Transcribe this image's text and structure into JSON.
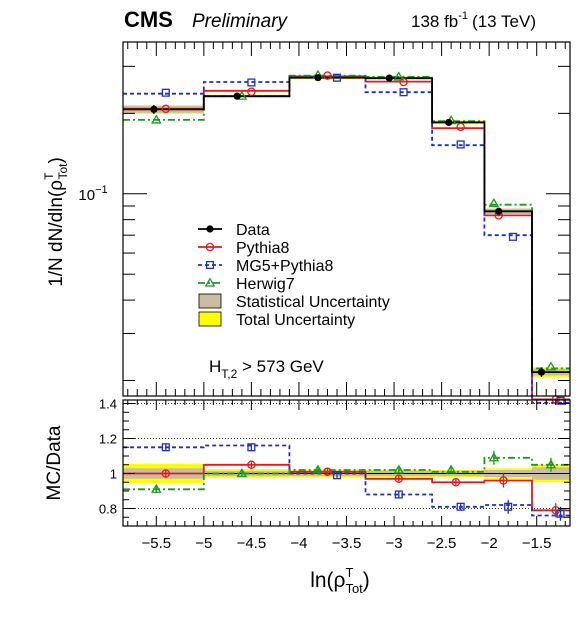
{
  "header": {
    "experiment": "CMS",
    "status": "Preliminary",
    "lumi": "138 fb",
    "lumi_exp": "-1",
    "energy": "(13 TeV)"
  },
  "annotation": {
    "base": "H",
    "sub": "T,2",
    "rest": " > 573 GeV"
  },
  "colors": {
    "data": "#000000",
    "pythia": "#e41a1c",
    "mg5": "#1f2fc8",
    "herwig": "#1a9a1a",
    "stat": "#c8bfa0",
    "total": "#ffff00"
  },
  "chart_data": [
    {
      "type": "line",
      "panel": "main",
      "ylabel": "1/N dN/dln(ρTot T)",
      "yscale": "log",
      "ylim": [
        0.0175,
        0.37
      ],
      "xlim": [
        -5.85,
        -1.15
      ],
      "yticks": [
        {
          "value": 0.1,
          "base": "10",
          "exp": "−1"
        }
      ],
      "bin_edges": [
        -5.85,
        -5.0,
        -4.1,
        -3.3,
        -2.6,
        -2.05,
        -1.55,
        -1.15
      ],
      "legend": {
        "position": "center-left",
        "entries": [
          {
            "key": "data",
            "label": "Data"
          },
          {
            "key": "pythia",
            "label": "Pythia8"
          },
          {
            "key": "mg5",
            "label": "MG5+Pythia8"
          },
          {
            "key": "herwig",
            "label": "Herwig7"
          },
          {
            "key": "stat",
            "label": "Statistical Uncertainty"
          },
          {
            "key": "total",
            "label": "Total Uncertainty"
          }
        ]
      },
      "series": [
        {
          "name": "Data",
          "key": "data",
          "values": [
            0.207,
            0.232,
            0.272,
            0.271,
            0.185,
            0.086,
            0.0215
          ],
          "stat_err": [
            0.006,
            0.002,
            0.002,
            0.003,
            0.002,
            0.002,
            0.0006
          ],
          "total_err": [
            0.008,
            0.003,
            0.004,
            0.004,
            0.003,
            0.002,
            0.0009
          ]
        },
        {
          "name": "Pythia8",
          "key": "pythia",
          "values": [
            0.208,
            0.243,
            0.275,
            0.263,
            0.176,
            0.083,
            0.017
          ],
          "marker_x": [
            -5.4,
            -4.5,
            -3.7,
            -2.9,
            -2.3,
            -1.9,
            -1.3
          ],
          "marker_y": [
            0.208,
            0.241,
            0.277,
            0.262,
            0.178,
            0.083,
            0.017
          ]
        },
        {
          "name": "MG5+Pythia8",
          "key": "mg5",
          "values": [
            0.237,
            0.262,
            0.273,
            0.24,
            0.152,
            0.07,
            0.0165
          ],
          "marker_x": [
            -5.4,
            -4.5,
            -3.6,
            -2.9,
            -2.3,
            -1.75,
            -1.25
          ],
          "marker_y": [
            0.239,
            0.261,
            0.272,
            0.24,
            0.153,
            0.069,
            0.0168
          ]
        },
        {
          "name": "Herwig7",
          "key": "herwig",
          "values": [
            0.189,
            0.232,
            0.277,
            0.274,
            0.187,
            0.091,
            0.0222
          ],
          "marker_x": [
            -5.5,
            -4.6,
            -3.8,
            -2.95,
            -2.4,
            -1.95,
            -1.35
          ],
          "marker_y": [
            0.189,
            0.232,
            0.278,
            0.274,
            0.188,
            0.092,
            0.0225
          ]
        }
      ]
    },
    {
      "type": "line",
      "panel": "ratio",
      "ylabel": "MC/Data",
      "xlabel": "ln(ρTot T)",
      "ylim": [
        0.7,
        1.42
      ],
      "yticks": [
        0.8,
        1,
        1.2,
        1.4
      ],
      "xticks": [
        -5.5,
        -5,
        -4.5,
        -4,
        -3.5,
        -3,
        -2.5,
        -2,
        -1.5
      ],
      "xtick_labels": [
        "−5.5",
        "−5",
        "−4.5",
        "−4",
        "−3.5",
        "−3",
        "−2.5",
        "−2",
        "−1.5"
      ],
      "ytick_labels": [
        "0.8",
        "1",
        "1.2",
        "1.4"
      ],
      "dotted_lines": [
        0.8,
        1.2,
        1.4
      ],
      "bin_edges": [
        -5.85,
        -5.0,
        -4.1,
        -3.3,
        -2.6,
        -2.05,
        -1.55,
        -1.15
      ],
      "stat_band": [
        0.03,
        0.015,
        0.015,
        0.015,
        0.015,
        0.02,
        0.035
      ],
      "total_band": [
        0.055,
        0.025,
        0.02,
        0.02,
        0.02,
        0.03,
        0.05
      ],
      "series": [
        {
          "name": "Pythia8",
          "key": "pythia",
          "values": [
            1.0,
            1.05,
            1.01,
            0.97,
            0.95,
            0.96,
            0.79
          ],
          "marker_x": [
            -5.4,
            -4.5,
            -3.7,
            -2.95,
            -2.35,
            -1.85,
            -1.3
          ],
          "marker_y": [
            1.0,
            1.05,
            1.01,
            0.97,
            0.95,
            0.96,
            0.79
          ]
        },
        {
          "name": "MG5+Pythia8",
          "key": "mg5",
          "values": [
            1.15,
            1.16,
            1.0,
            0.88,
            0.81,
            0.82,
            0.76
          ],
          "marker_x": [
            -5.4,
            -4.5,
            -3.6,
            -2.95,
            -2.3,
            -1.8,
            -1.25
          ],
          "marker_y": [
            1.15,
            1.15,
            0.99,
            0.88,
            0.81,
            0.81,
            0.77
          ]
        },
        {
          "name": "Herwig7",
          "key": "herwig",
          "values": [
            0.91,
            1.0,
            1.02,
            1.02,
            1.01,
            1.09,
            1.05
          ],
          "marker_x": [
            -5.5,
            -4.6,
            -3.8,
            -2.95,
            -2.4,
            -1.95,
            -1.35
          ],
          "marker_y": [
            0.91,
            1.0,
            1.02,
            1.02,
            1.02,
            1.09,
            1.05
          ]
        }
      ]
    }
  ]
}
